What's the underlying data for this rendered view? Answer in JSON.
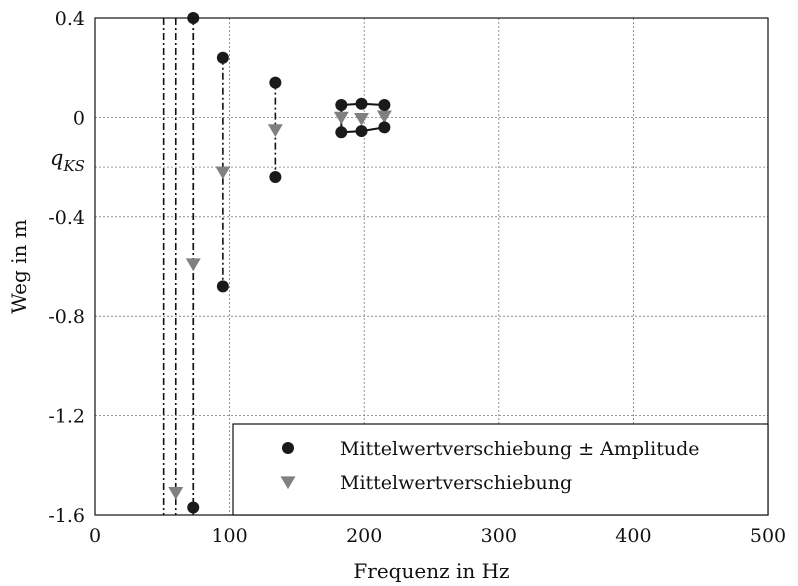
{
  "chart_data": {
    "type": "scatter",
    "title": "",
    "xlabel": "Frequenz in Hz",
    "ylabel": "Weg in m",
    "xlim": [
      0,
      500
    ],
    "ylim": [
      -1.6,
      0.4
    ],
    "xticks": [
      "0",
      "100",
      "200",
      "300",
      "400",
      "500"
    ],
    "yticks": [
      "-1.6",
      "-1.2",
      "-0.8",
      "-0.4",
      "0",
      "0.4"
    ],
    "grid": true,
    "legend_position": "bottom-right",
    "annotation": {
      "label": "q",
      "subscript": "KS",
      "y": -0.2
    },
    "vlines": [
      51,
      60,
      73
    ],
    "series": [
      {
        "name": "Mittelwertverschiebung ± Amplitude",
        "marker": "circle",
        "color": "#1a1a1a",
        "x": [
          73,
          73,
          95,
          95,
          134,
          134,
          183,
          183,
          198,
          198,
          215,
          215
        ],
        "y": [
          0.4,
          -1.57,
          0.24,
          -0.68,
          0.14,
          -0.24,
          0.05,
          -0.06,
          0.055,
          -0.055,
          0.05,
          -0.04
        ]
      },
      {
        "name": "Mittelwertverschiebung",
        "marker": "triangle-down",
        "color": "#808080",
        "x": [
          60,
          73,
          95,
          134,
          183,
          198,
          215
        ],
        "y": [
          -1.51,
          -0.59,
          -0.22,
          -0.05,
          0.0,
          -0.005,
          0.005
        ]
      }
    ],
    "amplitude_segments": [
      {
        "x": 73,
        "y1": 0.4,
        "y2": -1.57
      },
      {
        "x": 95,
        "y1": 0.24,
        "y2": -0.68
      },
      {
        "x": 134,
        "y1": 0.14,
        "y2": -0.24
      }
    ],
    "cluster_box": [
      {
        "x": 183,
        "y": 0.05
      },
      {
        "x": 198,
        "y": 0.055
      },
      {
        "x": 215,
        "y": 0.05
      },
      {
        "x": 215,
        "y": -0.04
      },
      {
        "x": 198,
        "y": -0.055
      },
      {
        "x": 183,
        "y": -0.06
      }
    ]
  }
}
